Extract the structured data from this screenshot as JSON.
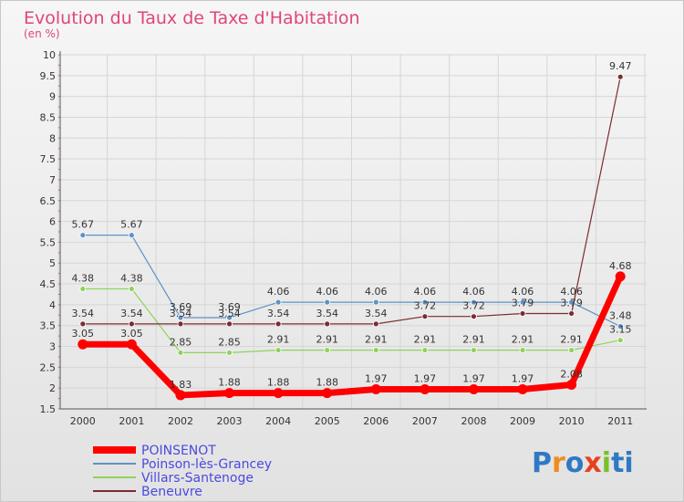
{
  "chart_data": {
    "type": "line",
    "title": "Evolution du Taux de Taxe d'Habitation",
    "subtitle": "(en %)",
    "categories": [
      "2000",
      "2001",
      "2002",
      "2003",
      "2004",
      "2005",
      "2006",
      "2007",
      "2008",
      "2009",
      "2010",
      "2011"
    ],
    "y_ticks": [
      "1.5",
      "2",
      "2.5",
      "3",
      "3.5",
      "4",
      "4.5",
      "5",
      "5.5",
      "6",
      "6.5",
      "7",
      "7.5",
      "8",
      "8.5",
      "9",
      "9.5",
      "10"
    ],
    "ylim": [
      1.5,
      10
    ],
    "grid": true,
    "legend_position": "bottom-left",
    "series": [
      {
        "name": "Poinson-lès-Grancey",
        "color": "#5b93c6",
        "values": [
          5.67,
          5.67,
          3.69,
          3.69,
          4.06,
          4.06,
          4.06,
          4.06,
          4.06,
          4.06,
          4.06,
          3.48
        ],
        "labels": [
          "5.67",
          "5.67",
          "3.69",
          "3.69",
          "4.06",
          "4.06",
          "4.06",
          "4.06",
          "4.06",
          "4.06",
          "4.06",
          "3.48"
        ]
      },
      {
        "name": "Villars-Santenoge",
        "color": "#8ed35a",
        "values": [
          4.38,
          4.38,
          2.85,
          2.85,
          2.91,
          2.91,
          2.91,
          2.91,
          2.91,
          2.91,
          2.91,
          3.15
        ],
        "labels": [
          "4.38",
          "4.38",
          "2.85",
          "2.85",
          "2.91",
          "2.91",
          "2.91",
          "2.91",
          "2.91",
          "2.91",
          "2.91",
          "3.15"
        ]
      },
      {
        "name": "Beneuvre",
        "color": "#7d2b30",
        "values": [
          3.54,
          3.54,
          3.54,
          3.54,
          3.54,
          3.54,
          3.54,
          3.72,
          3.72,
          3.79,
          3.79,
          9.47
        ],
        "labels": [
          "3.54",
          "3.54",
          "3.54",
          "3.54",
          "3.54",
          "3.54",
          "3.54",
          "3.72",
          "3.72",
          "3.79",
          "3.79",
          "9.47"
        ]
      },
      {
        "name": "POINSENOT",
        "color": "#ff0000",
        "values": [
          3.05,
          3.05,
          1.83,
          1.88,
          1.88,
          1.88,
          1.97,
          1.97,
          1.97,
          1.97,
          2.08,
          4.68
        ],
        "labels": [
          "3.05",
          "3.05",
          "1.83",
          "1.88",
          "1.88",
          "1.88",
          "1.97",
          "1.97",
          "1.97",
          "1.97",
          "2.08",
          "4.68"
        ]
      }
    ],
    "legend": [
      "POINSENOT",
      "Poinson-lès-Grancey",
      "Villars-Santenoge",
      "Beneuvre"
    ]
  },
  "logo": {
    "text": "Proxiti"
  },
  "colors": {
    "title": "#e0457b",
    "legend_text": "#4a4adf",
    "grid": "#d6d6d6",
    "axis": "#555555"
  }
}
